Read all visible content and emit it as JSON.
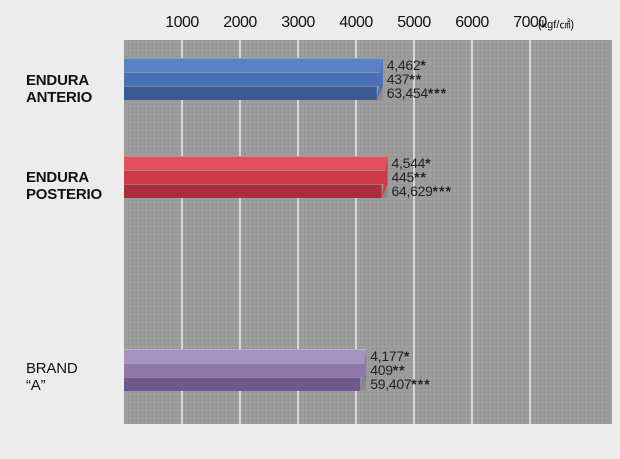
{
  "chart_data": {
    "type": "bar",
    "orientation": "horizontal",
    "x_ticks": [
      "1000",
      "2000",
      "3000",
      "4000",
      "5000",
      "6000",
      "7000"
    ],
    "unit": "(kgf/㎠)",
    "xlim": [
      0,
      8000
    ],
    "grid": true,
    "categories": [
      {
        "label_lines": [
          "ENDURA",
          "ANTERIO"
        ],
        "bold": true,
        "colors": [
          "#5b82c4",
          "#4a70b4",
          "#3a5a94"
        ],
        "bars": [
          {
            "value": 4462,
            "label": "4,462",
            "stars": "*"
          },
          {
            "value": 437,
            "label": "437",
            "stars": "**"
          },
          {
            "value": 63454,
            "label": "63,454",
            "stars": "***"
          }
        ]
      },
      {
        "label_lines": [
          "ENDURA",
          "POSTERIO"
        ],
        "bold": true,
        "colors": [
          "#e0505e",
          "#cc3a4a",
          "#a82e3c"
        ],
        "bars": [
          {
            "value": 4544,
            "label": "4,544",
            "stars": "*"
          },
          {
            "value": 445,
            "label": "445",
            "stars": "**"
          },
          {
            "value": 64629,
            "label": "64,629",
            "stars": "***"
          }
        ]
      },
      {
        "label_lines": [
          "BRAND",
          "“A”"
        ],
        "bold": false,
        "colors": [
          "#a693bd",
          "#8e77a8",
          "#6e5a88"
        ],
        "bars": [
          {
            "value": 4177,
            "label": "4,177",
            "stars": "*"
          },
          {
            "value": 409,
            "label": "409",
            "stars": "**"
          },
          {
            "value": 59407,
            "label": "59,407",
            "stars": "***"
          }
        ]
      }
    ]
  }
}
